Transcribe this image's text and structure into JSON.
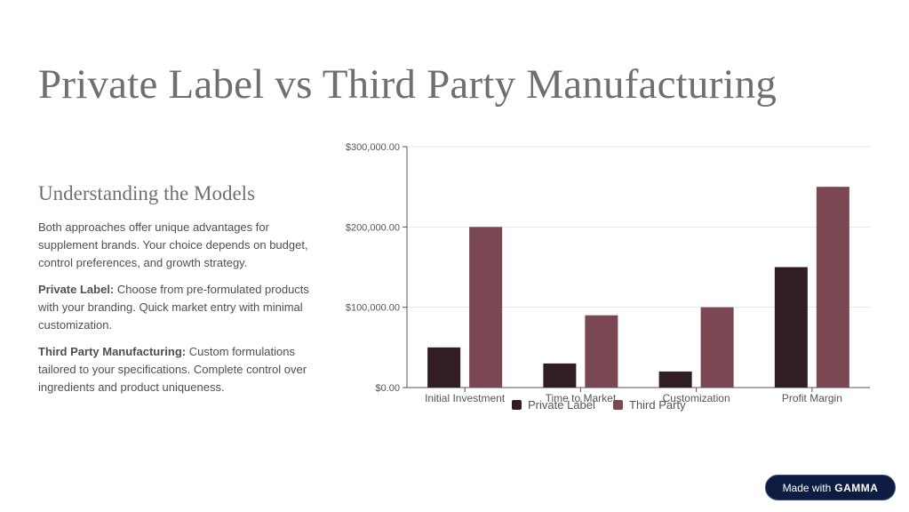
{
  "slide": {
    "title": "Private Label vs Third Party Manufacturing",
    "subtitle": "Understanding the Models",
    "intro": "Both approaches offer unique advantages for supplement brands. Your choice depends on budget, control preferences, and growth strategy.",
    "private_label": {
      "label": "Private Label:",
      "text": " Choose from pre-formulated products with your branding. Quick market entry with minimal customization."
    },
    "third_party": {
      "label": "Third Party Manufacturing:",
      "text": " Custom formulations tailored to your specifications. Complete control over ingredients and product uniqueness."
    }
  },
  "badge": {
    "prefix": "Made with",
    "brand": "GAMMA"
  },
  "chart_data": {
    "type": "bar",
    "title": "",
    "xlabel": "",
    "ylabel": "",
    "categories": [
      "Initial Investment",
      "Time to Market",
      "Customization",
      "Profit Margin"
    ],
    "series": [
      {
        "name": "Private Label",
        "values": [
          50000,
          30000,
          20000,
          150000
        ],
        "color": "#311e23"
      },
      {
        "name": "Third Party",
        "values": [
          200000,
          90000,
          100000,
          250000
        ],
        "color": "#7a4752"
      }
    ],
    "ylim": [
      0,
      300000
    ],
    "yticks": [
      0,
      100000,
      200000,
      300000
    ],
    "ytick_labels": [
      "$0.00",
      "$100,000.00",
      "$200,000.00",
      "$300,000.00"
    ],
    "grid": true,
    "legend_position": "bottom"
  }
}
